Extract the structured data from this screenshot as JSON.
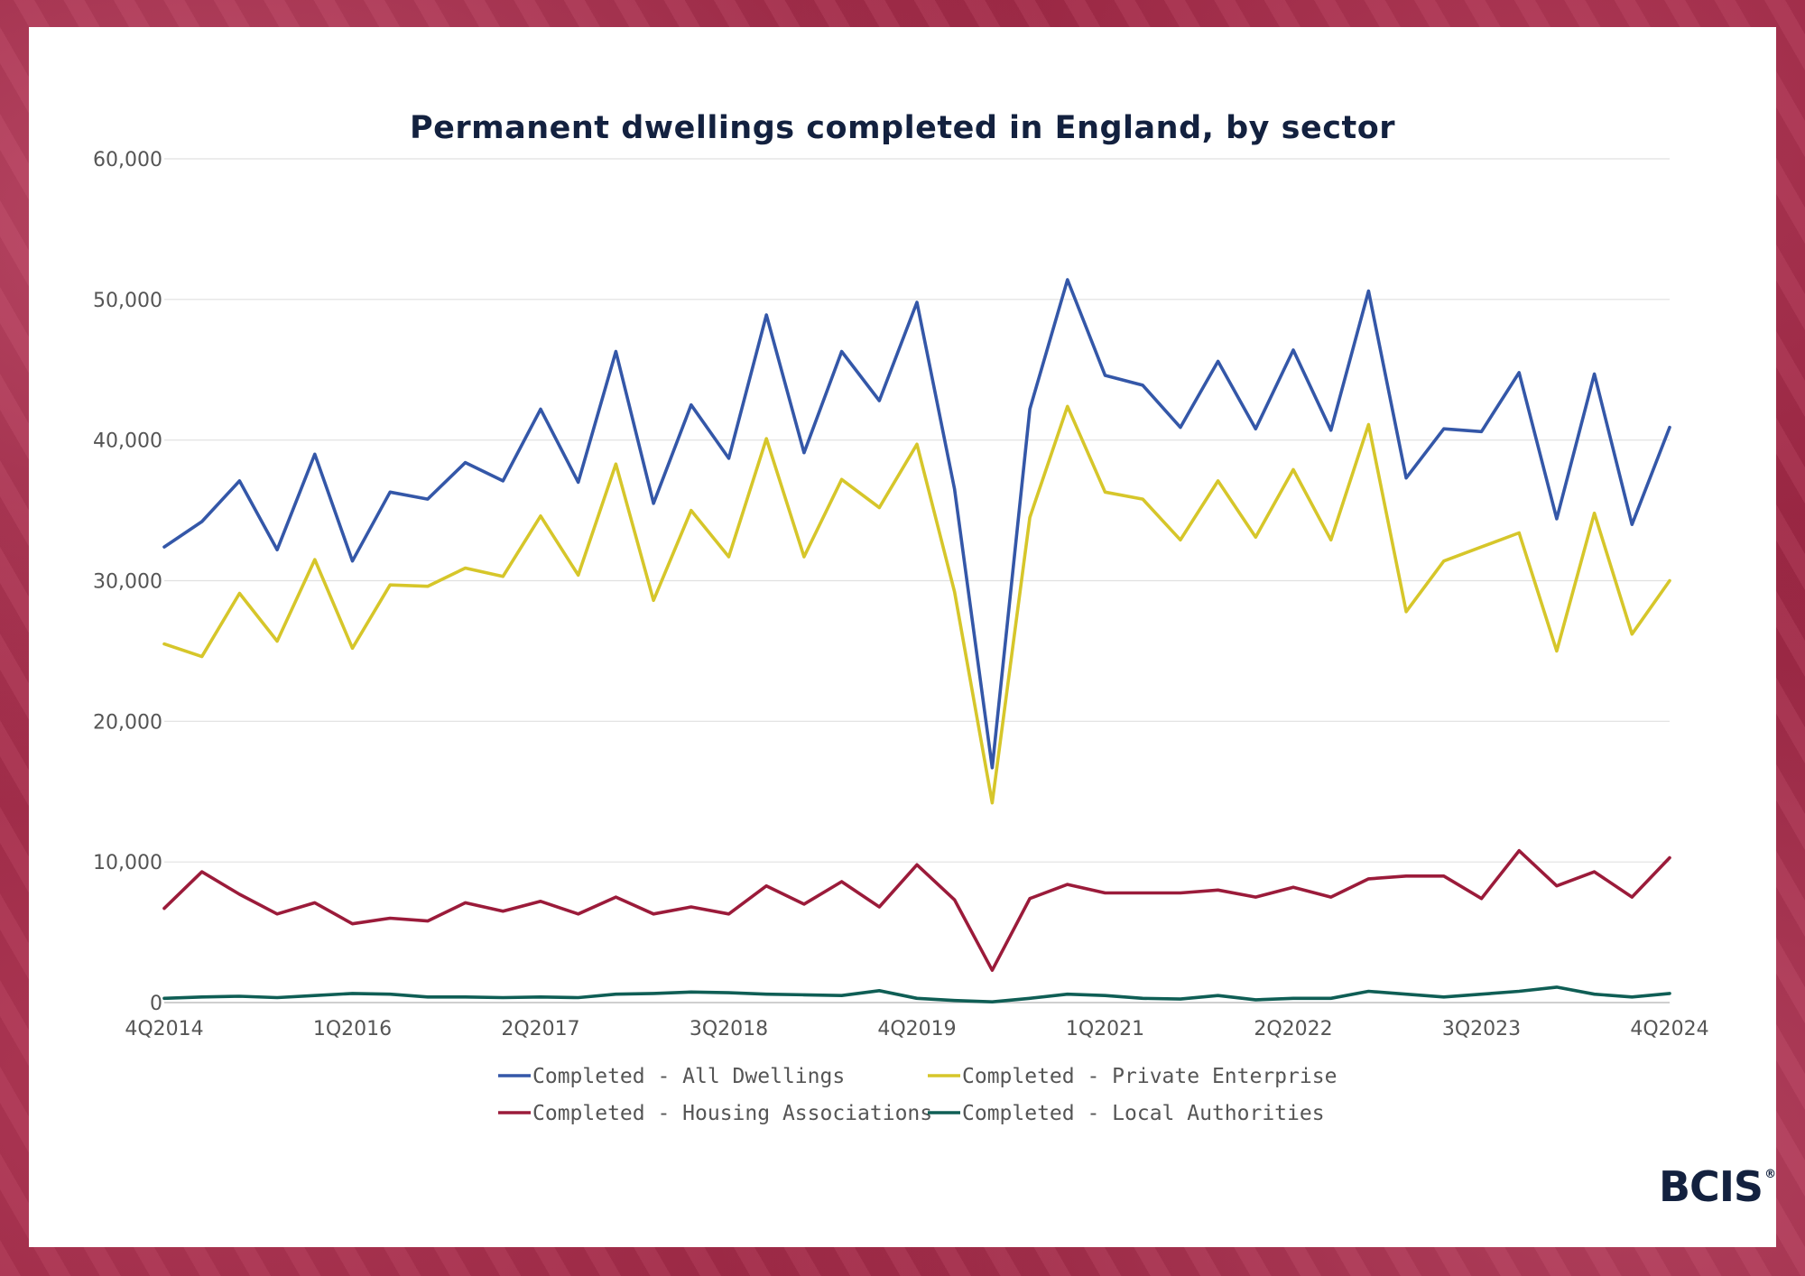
{
  "chart_data": {
    "type": "line",
    "title": "Permanent dwellings completed in England, by sector",
    "xlabel": "",
    "ylabel": "",
    "ylim": [
      0,
      60000
    ],
    "yticks": [
      "0",
      "10,000",
      "20,000",
      "30,000",
      "40,000",
      "50,000",
      "60,000"
    ],
    "x": [
      "4Q2014",
      "1Q2015",
      "2Q2015",
      "3Q2015",
      "4Q2015",
      "1Q2016",
      "2Q2016",
      "3Q2016",
      "4Q2016",
      "1Q2017",
      "2Q2017",
      "3Q2017",
      "4Q2017",
      "1Q2018",
      "2Q2018",
      "3Q2018",
      "4Q2018",
      "1Q2019",
      "2Q2019",
      "3Q2019",
      "4Q2019",
      "1Q2020",
      "2Q2020",
      "3Q2020",
      "4Q2020",
      "1Q2021",
      "2Q2021",
      "3Q2021",
      "4Q2021",
      "1Q2022",
      "2Q2022",
      "3Q2022",
      "4Q2022",
      "1Q2023",
      "2Q2023",
      "3Q2023",
      "4Q2023",
      "1Q2024",
      "2Q2024",
      "3Q2024",
      "4Q2024"
    ],
    "xtick_labels": [
      "4Q2014",
      "1Q2016",
      "2Q2017",
      "3Q2018",
      "4Q2019",
      "1Q2021",
      "2Q2022",
      "3Q2023",
      "4Q2024"
    ],
    "grid": true,
    "legend_position": "bottom",
    "series": [
      {
        "name": "Completed - All Dwellings",
        "color": "#3457a8",
        "values": [
          32400,
          34200,
          37100,
          32200,
          39000,
          31400,
          36300,
          35800,
          38400,
          37100,
          42200,
          37000,
          46300,
          35500,
          42500,
          38700,
          48900,
          39100,
          46300,
          42800,
          49800,
          36500,
          16700,
          42200,
          51400,
          44600,
          43900,
          40900,
          45600,
          40800,
          46400,
          40700,
          50600,
          37300,
          40800,
          40600,
          44800,
          34400,
          44700,
          34000,
          40900
        ]
      },
      {
        "name": "Completed - Private Enterprise",
        "color": "#d6c62a",
        "values": [
          25500,
          24600,
          29100,
          25700,
          31500,
          25200,
          29700,
          29600,
          30900,
          30300,
          34600,
          30400,
          38300,
          28600,
          35000,
          31700,
          40100,
          31700,
          37200,
          35200,
          39700,
          29200,
          14200,
          34500,
          42400,
          36300,
          35800,
          32900,
          37100,
          33100,
          37900,
          32900,
          41100,
          27800,
          31400,
          32400,
          33400,
          25000,
          34800,
          26200,
          30000
        ]
      },
      {
        "name": "Completed - Housing Associations",
        "color": "#9b1b3a",
        "values": [
          6700,
          9300,
          7700,
          6300,
          7100,
          5600,
          6000,
          5800,
          7100,
          6500,
          7200,
          6300,
          7500,
          6300,
          6800,
          6300,
          8300,
          7000,
          8600,
          6800,
          9800,
          7300,
          2300,
          7400,
          8400,
          7800,
          7800,
          7800,
          8000,
          7500,
          8200,
          7500,
          8800,
          9000,
          9000,
          7400,
          10800,
          8300,
          9300,
          7500,
          10300
        ]
      },
      {
        "name": "Completed - Local Authorities",
        "color": "#0f5e55",
        "values": [
          300,
          400,
          450,
          350,
          500,
          650,
          600,
          400,
          400,
          350,
          400,
          350,
          600,
          650,
          750,
          700,
          600,
          550,
          500,
          850,
          300,
          150,
          50,
          300,
          600,
          500,
          300,
          250,
          500,
          200,
          300,
          300,
          800,
          600,
          400,
          600,
          800,
          1100,
          600,
          400,
          650
        ]
      }
    ]
  },
  "brand": {
    "logo_text": "BCIS",
    "logo_mark": "®"
  }
}
